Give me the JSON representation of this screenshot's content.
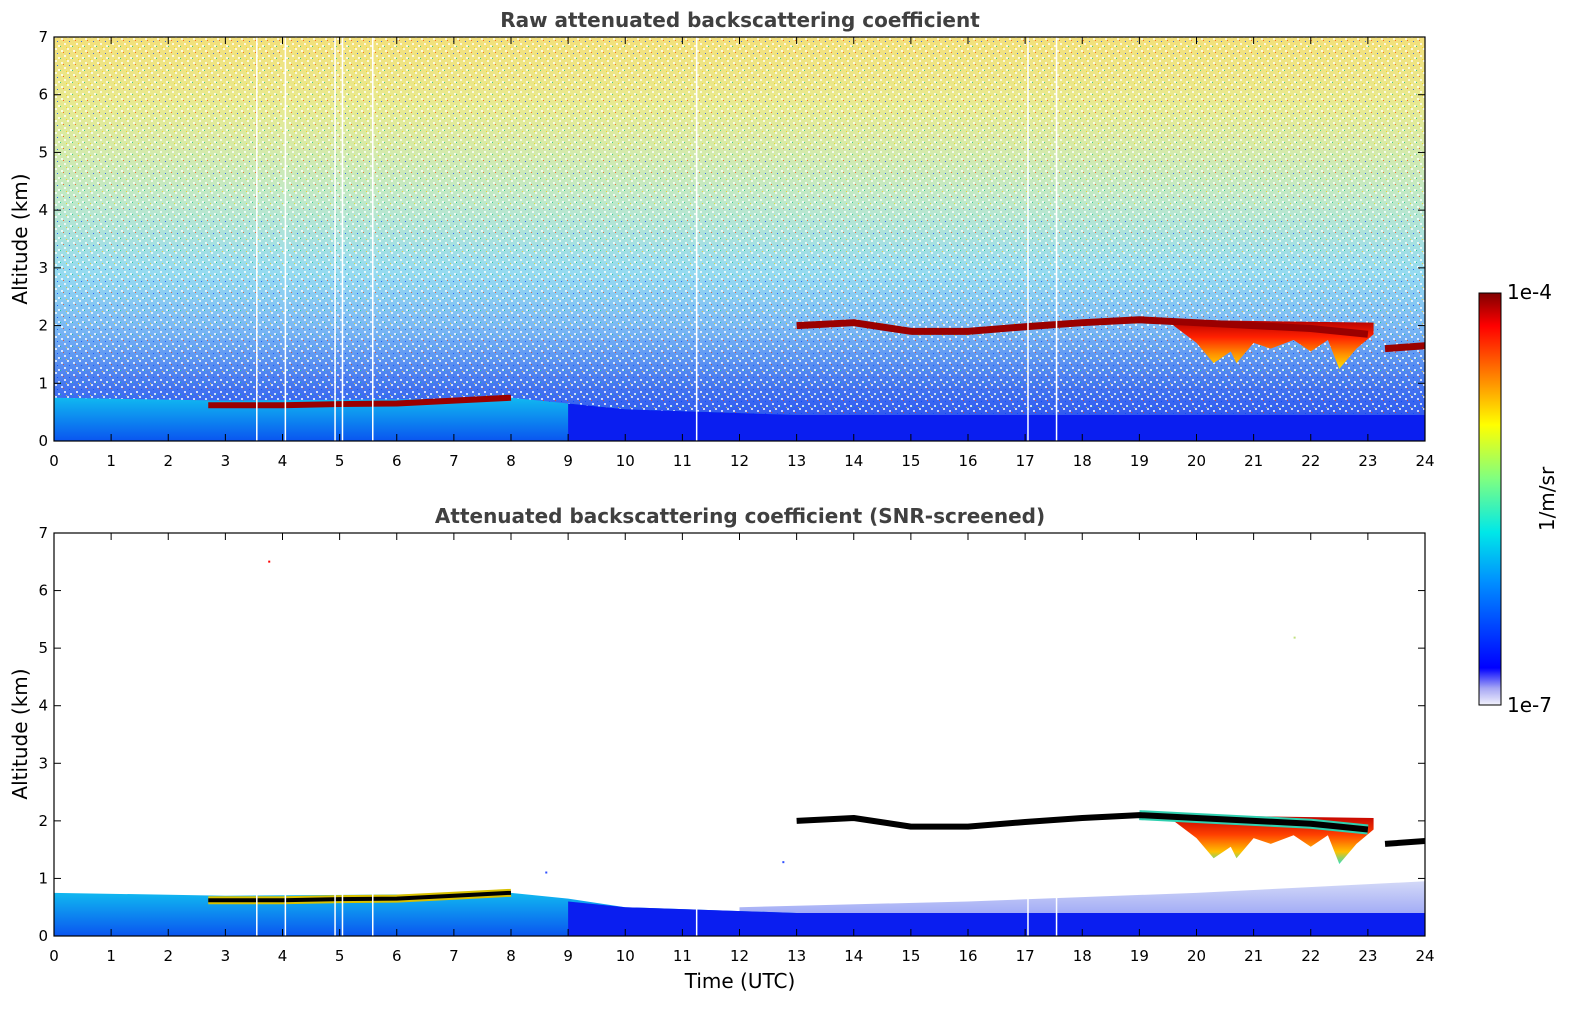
{
  "chart_data": [
    {
      "type": "heatmap",
      "title": "Raw attenuated backscattering coefficient",
      "ylabel": "Altitude (km)",
      "xlabel": "",
      "xlim": [
        0,
        24
      ],
      "ylim": [
        0,
        7
      ],
      "xticks": [
        "0",
        "1",
        "2",
        "3",
        "4",
        "5",
        "6",
        "7",
        "8",
        "9",
        "10",
        "11",
        "12",
        "13",
        "14",
        "15",
        "16",
        "17",
        "18",
        "19",
        "20",
        "21",
        "22",
        "23",
        "24"
      ],
      "yticks": [
        "0",
        "1",
        "2",
        "3",
        "4",
        "5",
        "6",
        "7"
      ],
      "grid": false,
      "features": {
        "boundary_layer_top_km": [
          {
            "t": 0,
            "z": 0.75
          },
          {
            "t": 3,
            "z": 0.7
          },
          {
            "t": 6,
            "z": 0.72
          },
          {
            "t": 8,
            "z": 0.75
          },
          {
            "t": 9,
            "z": 0.65
          },
          {
            "t": 10,
            "z": 0.55
          },
          {
            "t": 13,
            "z": 0.45
          },
          {
            "t": 24,
            "z": 0.45
          }
        ],
        "low_cloud_layer_km": [
          {
            "t": 2.7,
            "z": 0.62
          },
          {
            "t": 4,
            "z": 0.62
          },
          {
            "t": 5,
            "z": 0.64
          },
          {
            "t": 6,
            "z": 0.65
          },
          {
            "t": 7,
            "z": 0.7
          },
          {
            "t": 8,
            "z": 0.75
          }
        ],
        "elevated_layer_km": [
          {
            "t": 13,
            "z": 2.0
          },
          {
            "t": 14,
            "z": 2.05
          },
          {
            "t": 15,
            "z": 1.9
          },
          {
            "t": 16,
            "z": 1.9
          },
          {
            "t": 17,
            "z": 1.98
          },
          {
            "t": 18,
            "z": 2.05
          },
          {
            "t": 19,
            "z": 2.1
          },
          {
            "t": 20,
            "z": 2.05
          },
          {
            "t": 21,
            "z": 2.0
          },
          {
            "t": 22,
            "z": 1.95
          },
          {
            "t": 23,
            "z": 1.85
          },
          {
            "t": 23.3,
            "z": 1.6
          },
          {
            "t": 24,
            "z": 1.65
          }
        ]
      }
    },
    {
      "type": "heatmap",
      "title": "Attenuated backscattering coefficient (SNR-screened)",
      "ylabel": "Altitude (km)",
      "xlabel": "Time (UTC)",
      "xlim": [
        0,
        24
      ],
      "ylim": [
        0,
        7
      ],
      "xticks": [
        "0",
        "1",
        "2",
        "3",
        "4",
        "5",
        "6",
        "7",
        "8",
        "9",
        "10",
        "11",
        "12",
        "13",
        "14",
        "15",
        "16",
        "17",
        "18",
        "19",
        "20",
        "21",
        "22",
        "23",
        "24"
      ],
      "yticks": [
        "0",
        "1",
        "2",
        "3",
        "4",
        "5",
        "6",
        "7"
      ],
      "grid": false
    }
  ],
  "colorbar": {
    "label": "1/m/sr",
    "max_label": "1e-4",
    "min_label": "1e-7",
    "colormap": "jet",
    "stops": [
      "#e8e8f8",
      "#8080f0",
      "#0000ff",
      "#0080ff",
      "#00ffff",
      "#80ff80",
      "#ffff00",
      "#ff8000",
      "#ff0000",
      "#800000"
    ]
  }
}
